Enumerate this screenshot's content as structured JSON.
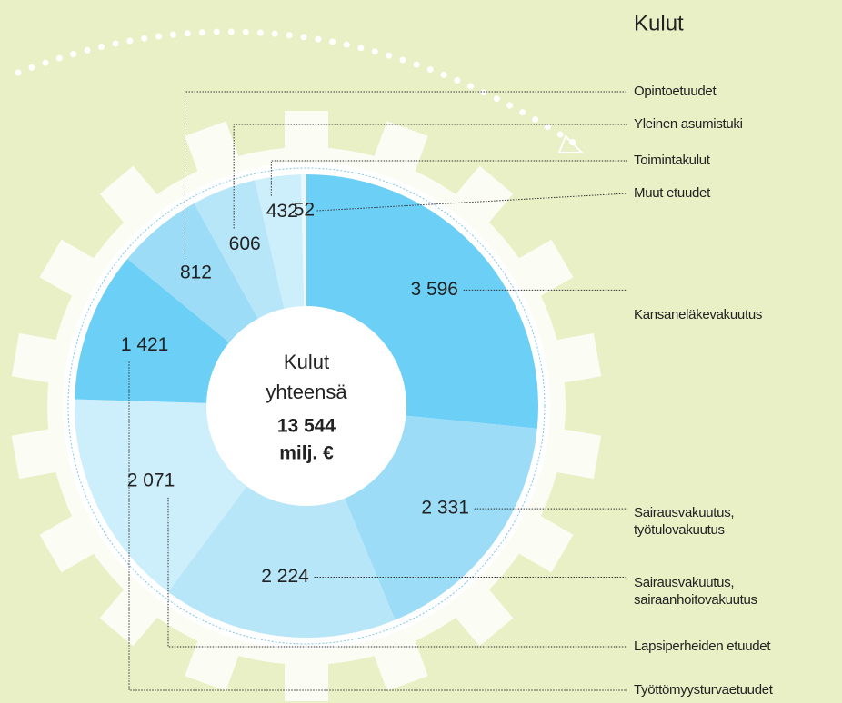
{
  "chart_data": {
    "type": "donut",
    "title": "Kulut",
    "center_text": [
      "Kulut",
      "yhteensä",
      "13 544",
      "milj. €"
    ],
    "categories": [
      "Kansaneläkevakuutus",
      "Sairausvakuutus, työtulovakuutus",
      "Sairausvakuutus, sairaanhoitovakuutus",
      "Lapsiperheiden etuudet",
      "Työttömyysturvaetuudet",
      "Opintoetuudet",
      "Yleinen asumistuki",
      "Toimintakulut",
      "Muut etuudet"
    ],
    "values": [
      3596,
      2331,
      2224,
      2071,
      1421,
      812,
      606,
      432,
      52
    ],
    "value_labels": [
      "3 596",
      "2 331",
      "2 224",
      "2 071",
      "1 421",
      "812",
      "606",
      "432",
      "52"
    ],
    "colors": [
      "#6ccff6",
      "#9cdcf7",
      "#b8e6f9",
      "#cdeefb",
      "#6ccff6",
      "#9cdcf7",
      "#b8e6f9",
      "#cdeefb",
      "#e8f8fe"
    ]
  }
}
